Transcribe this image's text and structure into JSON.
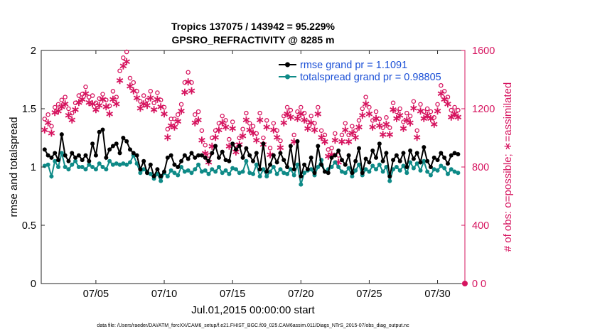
{
  "chart_data": {
    "type": "line",
    "title_line1": "Tropics 137075 / 143942 = 95.229%",
    "title_line2": "GPSRO_REFRACTIVITY @ 8285 m",
    "xlabel": "Jul.01,2015 00:00:00 start",
    "ylabel_left": "rmse and totalspread",
    "ylabel_right": "# of obs: o=possible; ∗=assimilated",
    "footer": "data file: /Users/raeder/DAI/ATM_forcXX/CAM6_setup/f.e21.FHIST_BGC.f09_025.CAM6assim.011/Diags_NTrS_2015-07/obs_diag_output.nc",
    "xlim": [
      1,
      32
    ],
    "ylim_left": [
      0,
      2
    ],
    "ylim_right": [
      0,
      1600
    ],
    "x_ticks": [
      5,
      10,
      15,
      20,
      25,
      30
    ],
    "x_tick_labels": [
      "07/05",
      "07/10",
      "07/15",
      "07/20",
      "07/25",
      "07/30"
    ],
    "y_ticks_left": [
      0,
      0.5,
      1,
      1.5,
      2
    ],
    "y_tick_labels_left": [
      "0",
      "0.5",
      "1",
      "1.5",
      "2"
    ],
    "y_ticks_right": [
      0,
      400,
      800,
      1200,
      1600
    ],
    "y_tick_labels_right": [
      "0",
      "400",
      "800",
      "1200",
      "1600"
    ],
    "right_zero_marker_label": "0",
    "legend": {
      "location": "top-right",
      "entries": [
        "rmse grand pr = 1.1091",
        "totalspread grand pr = 0.98805"
      ]
    },
    "colors": {
      "rmse": "#000000",
      "spread": "#0e8a87",
      "obs": "#d6145f",
      "legend_text": "#1a4fd6"
    },
    "series": [
      {
        "name": "rmse",
        "x": [
          1.25,
          1.5,
          1.75,
          2.0,
          2.25,
          2.5,
          2.75,
          3.0,
          3.25,
          3.5,
          3.75,
          4.0,
          4.25,
          4.5,
          4.75,
          5.0,
          5.25,
          5.5,
          5.75,
          6.0,
          6.25,
          6.5,
          6.75,
          7.0,
          7.25,
          7.5,
          7.75,
          8.0,
          8.25,
          8.5,
          8.75,
          9.0,
          9.25,
          9.5,
          9.75,
          10.0,
          10.25,
          10.5,
          10.75,
          11.0,
          11.25,
          11.5,
          11.75,
          12.0,
          12.25,
          12.5,
          12.75,
          13.0,
          13.25,
          13.5,
          13.75,
          14.0,
          14.25,
          14.5,
          14.75,
          15.0,
          15.25,
          15.5,
          15.75,
          16.0,
          16.25,
          16.5,
          16.75,
          17.0,
          17.25,
          17.5,
          17.75,
          18.0,
          18.25,
          18.5,
          18.75,
          19.0,
          19.25,
          19.5,
          19.75,
          20.0,
          20.25,
          20.5,
          20.75,
          21.0,
          21.25,
          21.5,
          21.75,
          22.0,
          22.25,
          22.5,
          22.75,
          23.0,
          23.25,
          23.5,
          23.75,
          24.0,
          24.25,
          24.5,
          24.75,
          25.0,
          25.25,
          25.5,
          25.75,
          26.0,
          26.25,
          26.5,
          26.75,
          27.0,
          27.25,
          27.5,
          27.75,
          28.0,
          28.25,
          28.5,
          28.75,
          29.0,
          29.25,
          29.5,
          29.75,
          30.0,
          30.25,
          30.5,
          30.75,
          31.0,
          31.25,
          31.5
        ],
        "values": [
          1.15,
          1.1,
          1.08,
          1.12,
          1.06,
          1.28,
          1.1,
          1.05,
          1.12,
          1.08,
          1.1,
          1.06,
          1.1,
          1.05,
          1.2,
          1.1,
          1.3,
          1.32,
          1.08,
          1.15,
          1.18,
          1.2,
          1.12,
          1.25,
          1.22,
          1.15,
          1.12,
          1.1,
          0.98,
          1.05,
          0.95,
          1.02,
          0.92,
          0.98,
          0.92,
          0.96,
          1.08,
          1.1,
          1.02,
          1.0,
          1.05,
          1.1,
          1.07,
          1.12,
          1.08,
          1.1,
          1.1,
          1.08,
          1.05,
          1.12,
          1.18,
          1.08,
          1.13,
          1.06,
          1.05,
          1.2,
          1.15,
          1.18,
          1.08,
          1.16,
          1.1,
          1.05,
          1.12,
          0.98,
          1.2,
          0.96,
          1.02,
          1.1,
          1.04,
          1.12,
          1.06,
          1.0,
          1.18,
          0.98,
          1.22,
          0.92,
          1.02,
          0.98,
          1.08,
          0.95,
          1.18,
          1.02,
          0.96,
          0.95,
          1.08,
          1.1,
          1.14,
          1.06,
          1.02,
          1.1,
          0.95,
          1.05,
          1.16,
          0.95,
          1.07,
          1.04,
          1.14,
          1.08,
          1.2,
          1.05,
          1.12,
          0.92,
          1.06,
          1.1,
          1.05,
          1.12,
          1.0,
          1.14,
          1.07,
          1.12,
          1.04,
          1.17,
          1.05,
          1.0,
          1.08,
          1.06,
          1.12,
          1.08,
          1.03,
          1.1,
          1.12,
          1.11
        ]
      },
      {
        "name": "totalspread",
        "x": [
          1.25,
          1.5,
          1.75,
          2.0,
          2.25,
          2.5,
          2.75,
          3.0,
          3.25,
          3.5,
          3.75,
          4.0,
          4.25,
          4.5,
          4.75,
          5.0,
          5.25,
          5.5,
          5.75,
          6.0,
          6.25,
          6.5,
          6.75,
          7.0,
          7.25,
          7.5,
          7.75,
          8.0,
          8.25,
          8.5,
          8.75,
          9.0,
          9.25,
          9.5,
          9.75,
          10.0,
          10.25,
          10.5,
          10.75,
          11.0,
          11.25,
          11.5,
          11.75,
          12.0,
          12.25,
          12.5,
          12.75,
          13.0,
          13.25,
          13.5,
          13.75,
          14.0,
          14.25,
          14.5,
          14.75,
          15.0,
          15.25,
          15.5,
          15.75,
          16.0,
          16.25,
          16.5,
          16.75,
          17.0,
          17.25,
          17.5,
          17.75,
          18.0,
          18.25,
          18.5,
          18.75,
          19.0,
          19.25,
          19.5,
          19.75,
          20.0,
          20.25,
          20.5,
          20.75,
          21.0,
          21.25,
          21.5,
          21.75,
          22.0,
          22.25,
          22.5,
          22.75,
          23.0,
          23.25,
          23.5,
          23.75,
          24.0,
          24.25,
          24.5,
          24.75,
          25.0,
          25.25,
          25.5,
          25.75,
          26.0,
          26.25,
          26.5,
          26.75,
          27.0,
          27.25,
          27.5,
          27.75,
          28.0,
          28.25,
          28.5,
          28.75,
          29.0,
          29.25,
          29.5,
          29.75,
          30.0,
          30.25,
          30.5,
          30.75,
          31.0,
          31.25,
          31.5
        ],
        "values": [
          1.01,
          1.02,
          0.92,
          1.05,
          1.0,
          1.12,
          1.0,
          0.98,
          1.02,
          1.05,
          1.0,
          1.0,
          0.98,
          1.02,
          1.0,
          0.98,
          1.03,
          1.0,
          0.98,
          1.05,
          1.02,
          1.03,
          1.02,
          1.03,
          1.02,
          1.04,
          1.1,
          1.03,
          0.95,
          0.98,
          0.96,
          0.94,
          0.9,
          0.94,
          0.88,
          0.95,
          0.92,
          0.97,
          0.95,
          0.93,
          1.0,
          0.96,
          0.97,
          0.95,
          0.98,
          1.02,
          0.96,
          0.97,
          0.94,
          0.98,
          0.96,
          1.0,
          0.95,
          0.97,
          0.94,
          0.99,
          0.98,
          0.95,
          0.96,
          1.05,
          0.95,
          0.94,
          1.02,
          0.92,
          0.98,
          0.92,
          0.96,
          1.0,
          0.94,
          0.98,
          0.95,
          0.94,
          0.98,
          0.93,
          1.02,
          0.85,
          0.95,
          0.97,
          0.98,
          0.93,
          1.0,
          1.06,
          0.96,
          0.98,
          1.0,
          1.04,
          1.0,
          0.96,
          0.95,
          0.99,
          0.92,
          0.97,
          1.02,
          0.93,
          0.98,
          0.96,
          1.01,
          0.98,
          1.02,
          0.96,
          1.0,
          0.88,
          0.98,
          1.0,
          0.97,
          1.01,
          0.95,
          1.04,
          0.99,
          1.03,
          0.97,
          1.05,
          0.96,
          0.93,
          0.98,
          0.97,
          1.01,
          0.99,
          0.94,
          0.98,
          0.96,
          0.95
        ]
      },
      {
        "name": "obs_possible",
        "x": [
          1.25,
          1.5,
          1.75,
          2.0,
          2.25,
          2.5,
          2.75,
          3.0,
          3.25,
          3.5,
          3.75,
          4.0,
          4.25,
          4.5,
          4.75,
          5.0,
          5.25,
          5.5,
          5.75,
          6.0,
          6.25,
          6.5,
          6.75,
          7.0,
          7.25,
          7.5,
          7.75,
          8.0,
          8.25,
          8.5,
          8.75,
          9.0,
          9.25,
          9.5,
          9.75,
          10.0,
          10.25,
          10.5,
          10.75,
          11.0,
          11.25,
          11.5,
          11.75,
          12.0,
          12.25,
          12.5,
          12.75,
          13.0,
          13.25,
          13.5,
          13.75,
          14.0,
          14.25,
          14.5,
          14.75,
          15.0,
          15.25,
          15.5,
          15.75,
          16.0,
          16.25,
          16.5,
          16.75,
          17.0,
          17.25,
          17.5,
          17.75,
          18.0,
          18.25,
          18.5,
          18.75,
          19.0,
          19.25,
          19.5,
          19.75,
          20.0,
          20.25,
          20.5,
          20.75,
          21.0,
          21.25,
          21.5,
          21.75,
          22.0,
          22.25,
          22.5,
          22.75,
          23.0,
          23.25,
          23.5,
          23.75,
          24.0,
          24.25,
          24.5,
          24.75,
          25.0,
          25.25,
          25.5,
          25.75,
          26.0,
          26.25,
          26.5,
          26.75,
          27.0,
          27.25,
          27.5,
          27.75,
          28.0,
          28.25,
          28.5,
          28.75,
          29.0,
          29.25,
          29.5,
          29.75,
          30.0,
          30.25,
          30.5,
          30.75,
          31.0,
          31.25,
          31.5
        ],
        "values": [
          1130,
          1160,
          1080,
          1210,
          1230,
          1260,
          1280,
          1200,
          1170,
          1240,
          1290,
          1300,
          1350,
          1280,
          1290,
          1240,
          1270,
          1300,
          1260,
          1220,
          1320,
          1280,
          1460,
          1550,
          1590,
          1410,
          1380,
          1320,
          1250,
          1290,
          1260,
          1320,
          1240,
          1310,
          1260,
          1210,
          1060,
          1130,
          1130,
          1160,
          1230,
          1380,
          1450,
          1380,
          1160,
          1180,
          1050,
          950,
          880,
          1000,
          1050,
          1100,
          1150,
          1120,
          990,
          1110,
          950,
          1000,
          1060,
          1170,
          1100,
          1080,
          1030,
          1170,
          1000,
          1120,
          930,
          1100,
          1050,
          980,
          1150,
          1210,
          1190,
          1020,
          1180,
          1210,
          1170,
          1110,
          1150,
          1100,
          1210,
          1050,
          1020,
          920,
          930,
          1030,
          880,
          1020,
          1100,
          1020,
          1080,
          1050,
          1120,
          1200,
          1280,
          1210,
          1120,
          1180,
          1130,
          1070,
          1140,
          1070,
          1240,
          1180,
          1200,
          1110,
          1170,
          1150,
          1250,
          1050,
          1230,
          1180,
          1200,
          1180,
          1140,
          1230,
          1360,
          1320,
          1280,
          1190,
          1210,
          1190
        ]
      },
      {
        "name": "obs_assimilated",
        "x": [
          1.25,
          1.5,
          1.75,
          2.0,
          2.25,
          2.5,
          2.75,
          3.0,
          3.25,
          3.5,
          3.75,
          4.0,
          4.25,
          4.5,
          4.75,
          5.0,
          5.25,
          5.5,
          5.75,
          6.0,
          6.25,
          6.5,
          6.75,
          7.0,
          7.25,
          7.5,
          7.75,
          8.0,
          8.25,
          8.5,
          8.75,
          9.0,
          9.25,
          9.5,
          9.75,
          10.0,
          10.25,
          10.5,
          10.75,
          11.0,
          11.25,
          11.5,
          11.75,
          12.0,
          12.25,
          12.5,
          12.75,
          13.0,
          13.25,
          13.5,
          13.75,
          14.0,
          14.25,
          14.5,
          14.75,
          15.0,
          15.25,
          15.5,
          15.75,
          16.0,
          16.25,
          16.5,
          16.75,
          17.0,
          17.25,
          17.5,
          17.75,
          18.0,
          18.25,
          18.5,
          18.75,
          19.0,
          19.25,
          19.5,
          19.75,
          20.0,
          20.25,
          20.5,
          20.75,
          21.0,
          21.25,
          21.5,
          21.75,
          22.0,
          22.25,
          22.5,
          22.75,
          23.0,
          23.25,
          23.5,
          23.75,
          24.0,
          24.25,
          24.5,
          24.75,
          25.0,
          25.25,
          25.5,
          25.75,
          26.0,
          26.25,
          26.5,
          26.75,
          27.0,
          27.25,
          27.5,
          27.75,
          28.0,
          28.25,
          28.5,
          28.75,
          29.0,
          29.25,
          29.5,
          29.75,
          30.0,
          30.25,
          30.5,
          30.75,
          31.0,
          31.25,
          31.5
        ],
        "values": [
          1060,
          1110,
          1040,
          1180,
          1190,
          1220,
          1240,
          1160,
          1130,
          1200,
          1250,
          1270,
          1310,
          1250,
          1240,
          1200,
          1230,
          1270,
          1220,
          1170,
          1270,
          1240,
          1400,
          1500,
          1530,
          1360,
          1330,
          1280,
          1210,
          1240,
          1230,
          1280,
          1200,
          1270,
          1220,
          1170,
          1010,
          1090,
          1080,
          1120,
          1190,
          1320,
          1390,
          1330,
          1110,
          1130,
          990,
          900,
          840,
          950,
          1010,
          1060,
          1110,
          1080,
          950,
          1070,
          910,
          960,
          1020,
          1130,
          1060,
          1040,
          990,
          1130,
          960,
          1080,
          890,
          1060,
          1010,
          940,
          1110,
          1170,
          1150,
          980,
          1140,
          1170,
          1130,
          1070,
          1110,
          1060,
          1170,
          1010,
          980,
          880,
          890,
          990,
          840,
          980,
          1060,
          980,
          1040,
          1010,
          1080,
          1160,
          1240,
          1170,
          1080,
          1140,
          1090,
          1030,
          1100,
          1030,
          1200,
          1140,
          1160,
          1070,
          1130,
          1110,
          1210,
          1010,
          1190,
          1140,
          1160,
          1140,
          1100,
          1190,
          1310,
          1270,
          1240,
          1150,
          1170,
          1150
        ]
      }
    ]
  }
}
